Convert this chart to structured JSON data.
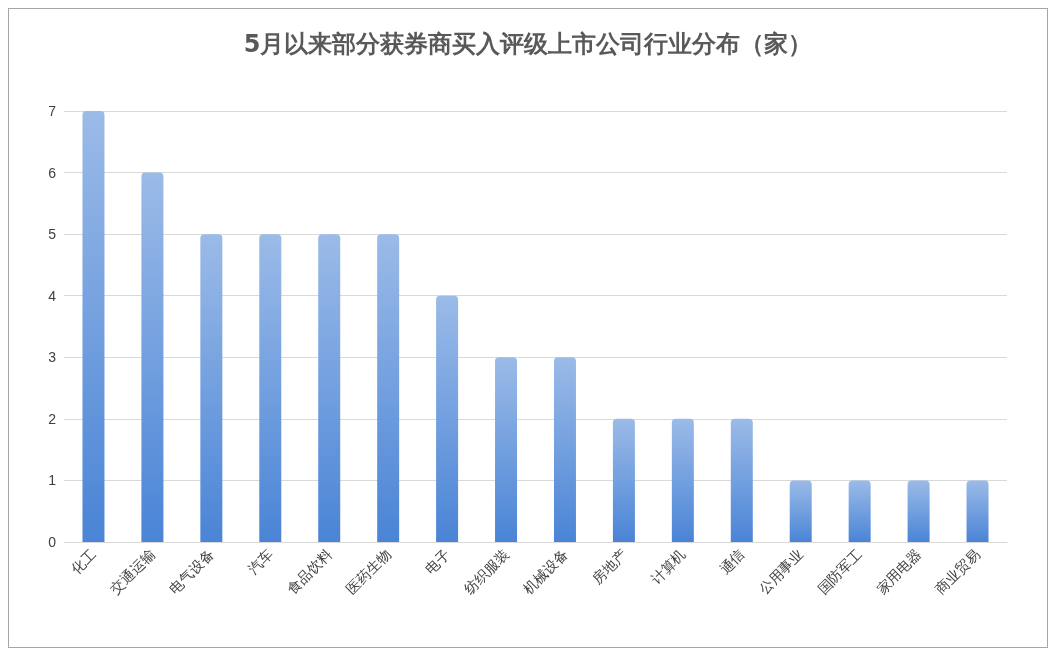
{
  "chart_data": {
    "type": "bar",
    "title": "5月以来部分获券商买入评级上市公司行业分布（家）",
    "categories": [
      "化工",
      "交通运输",
      "电气设备",
      "汽车",
      "食品饮料",
      "医药生物",
      "电子",
      "纺织服装",
      "机械设备",
      "房地产",
      "计算机",
      "通信",
      "公用事业",
      "国防军工",
      "家用电器",
      "商业贸易"
    ],
    "values": [
      7,
      6,
      5,
      5,
      5,
      5,
      4,
      3,
      3,
      2,
      2,
      2,
      1,
      1,
      1,
      1
    ],
    "color": "#4a84d6",
    "ylim": [
      0,
      7
    ],
    "yticks": [
      0,
      1,
      2,
      3,
      4,
      5,
      6,
      7
    ],
    "grid": "y"
  }
}
